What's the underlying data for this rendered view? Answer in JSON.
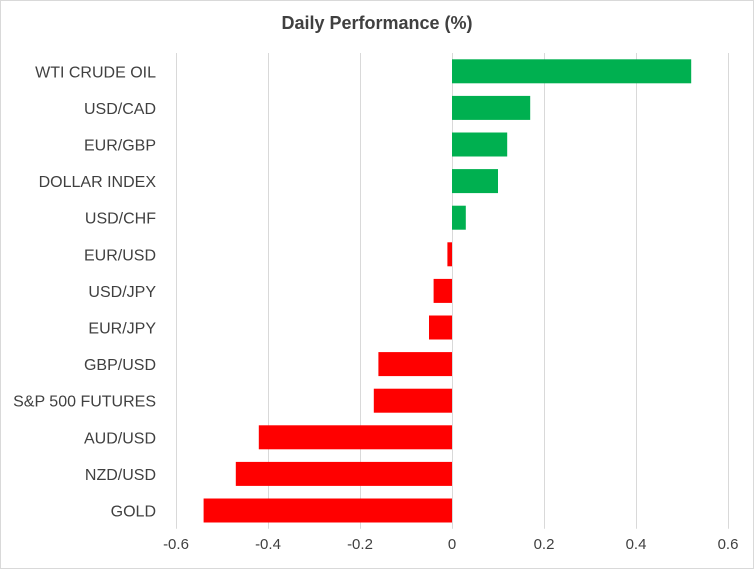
{
  "chart_data": {
    "type": "bar",
    "orientation": "horizontal",
    "title": "Daily Performance (%)",
    "xlabel": "",
    "ylabel": "",
    "categories": [
      "WTI CRUDE OIL",
      "USD/CAD",
      "EUR/GBP",
      "DOLLAR INDEX",
      "USD/CHF",
      "EUR/USD",
      "USD/JPY",
      "EUR/JPY",
      "GBP/USD",
      "S&P 500 FUTURES",
      "AUD/USD",
      "NZD/USD",
      "GOLD"
    ],
    "values": [
      0.52,
      0.17,
      0.12,
      0.1,
      0.03,
      -0.01,
      -0.04,
      -0.05,
      -0.16,
      -0.17,
      -0.42,
      -0.47,
      -0.54
    ],
    "xlim": [
      -0.6,
      0.6
    ],
    "xticks": [
      -0.6,
      -0.4,
      -0.2,
      0,
      0.2,
      0.4,
      0.6
    ],
    "xtick_labels": [
      "-0.6",
      "-0.4",
      "-0.2",
      "0",
      "0.2",
      "0.4",
      "0.6"
    ],
    "grid": true,
    "colors": {
      "positive": "#00b050",
      "negative": "#ff0000",
      "grid": "#d9d9d9",
      "text": "#404040"
    }
  }
}
